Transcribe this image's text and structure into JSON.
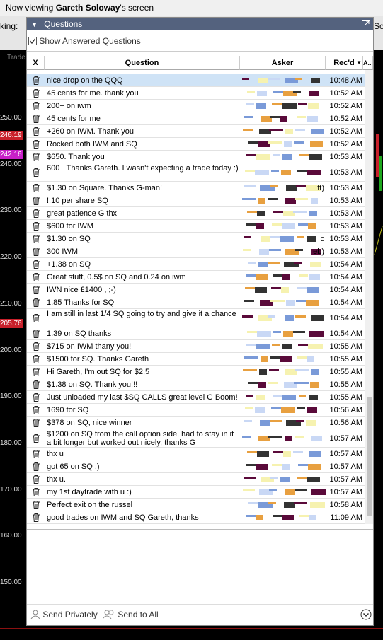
{
  "top_bar": {
    "prefix": "Now viewing ",
    "name": "Gareth Soloway",
    "suffix": "'s screen",
    "left_cut": "king:",
    "right_cut": "Scr"
  },
  "background": {
    "tab": "Trade",
    "price_labels": [
      {
        "label": "250.00"
      },
      {
        "label": "246.19",
        "color": "#c8202a"
      },
      {
        "label": "242.16",
        "color": "#c81fc8"
      },
      {
        "label": "240.00"
      },
      {
        "label": "230.00"
      },
      {
        "label": "220.00"
      },
      {
        "label": "210.00"
      },
      {
        "label": "205.76",
        "color": "#c8202a"
      },
      {
        "label": "200.00"
      },
      {
        "label": "190.00"
      },
      {
        "label": "180.00"
      },
      {
        "label": "170.00"
      },
      {
        "label": "160.00"
      },
      {
        "label": "150.00"
      }
    ]
  },
  "panel": {
    "title": "Questions",
    "show_answered": "Show Answered Questions",
    "columns": [
      "X",
      "Question",
      "Asker",
      "Rec'd",
      "A.."
    ],
    "rows": [
      {
        "question": "nice drop on the QQQ",
        "time": "10:48 AM",
        "selected": true
      },
      {
        "question": "45 cents for me.  thank you",
        "time": "10:52 AM"
      },
      {
        "question": "200+ on iwm",
        "time": "10:52 AM"
      },
      {
        "question": "45 cents for me",
        "time": "10:52 AM"
      },
      {
        "question": "+260 on IWM.  Thank you",
        "time": "10:52 AM"
      },
      {
        "question": "Rocked both IWM and SQ",
        "time": "10:52 AM"
      },
      {
        "question": "$650.  Thank you",
        "time": "10:53 AM"
      },
      {
        "question": "600+ Thanks Gareth. I wasn't expecting a trade today :)",
        "time": "10:53 AM",
        "double": true
      },
      {
        "question": "$1.30 on Square. Thanks G-man!",
        "time": "10:53 AM",
        "asker_visible": "ft)"
      },
      {
        "question": "!.10 per share SQ",
        "time": "10:53 AM"
      },
      {
        "question": "great patience G thx",
        "time": "10:53 AM"
      },
      {
        "question": "$600 for IWM",
        "time": "10:53 AM"
      },
      {
        "question": "$1.30 on SQ",
        "time": "10:53 AM",
        "asker_visible": "c"
      },
      {
        "question": "300 IWM",
        "time": "10:53 AM",
        "asker_visible": "eb)"
      },
      {
        "question": "+1.38 on SQ",
        "time": "10:54 AM"
      },
      {
        "question": "Great stuff, 0.5$ on SQ and 0.24 on iwm",
        "time": "10:54 AM"
      },
      {
        "question": "IWN nice £1400 , ;-)",
        "time": "10:54 AM"
      },
      {
        "question": "1.85 Thanks for SQ",
        "time": "10:54 AM"
      },
      {
        "question": "I am still in last 1/4 SQ going to try and give it a chance",
        "time": "10:54 AM",
        "double": true
      },
      {
        "question": "1.39 on SQ thanks",
        "time": "10:54 AM"
      },
      {
        "question": "$715 on IWM thany you!",
        "time": "10:55 AM"
      },
      {
        "question": "$1500 for SQ.  Thanks Gareth",
        "time": "10:55 AM"
      },
      {
        "question": "Hi Gareth, I'm out SQ for $2,5",
        "time": "10:55 AM"
      },
      {
        "question": "$1.38 on SQ.  Thank you!!!",
        "time": "10:55 AM"
      },
      {
        "question": "Just unloaded my last $SQ CALLS great level G Boom!",
        "time": "10:55 AM"
      },
      {
        "question": "1690 for SQ",
        "time": "10:56 AM"
      },
      {
        "question": "$378 on SQ, nice winner",
        "time": "10:56 AM"
      },
      {
        "question": "$1200 on SQ from the call option side, had to stay in it a bit longer but worked out nicely, thanks G",
        "time": "10:57 AM",
        "double": true
      },
      {
        "question": "thx u",
        "time": "10:57 AM"
      },
      {
        "question": "got 65 on SQ :)",
        "time": "10:57 AM"
      },
      {
        "question": "thx u.",
        "time": "10:57 AM"
      },
      {
        "question": "my 1st daytrade with u :)",
        "time": "10:57 AM"
      },
      {
        "question": "Perfect exit on the russel",
        "time": "10:58 AM"
      },
      {
        "question": "good trades on IWM and SQ Gareth, thanks",
        "time": "11:09 AM"
      }
    ],
    "footer": {
      "send_privately": "Send Privately",
      "send_to_all": "Send to All"
    }
  }
}
